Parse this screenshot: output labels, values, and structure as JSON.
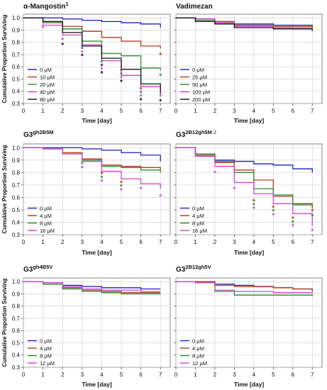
{
  "figure": {
    "colors": {
      "blue": "#1f1fbf",
      "red": "#b03a1e",
      "green": "#2e8b2e",
      "magenta": "#d040d0",
      "black": "#111111",
      "brown": "#b5561e",
      "grid": "#cccccc"
    }
  },
  "chart_data": [
    {
      "type": "line",
      "step": true,
      "title": "α-Mangostin",
      "title_sup": "1",
      "ylabel": "Cumulative Proportion Surviving",
      "xlabel": "Time [day]",
      "xlim": [
        0,
        7.5
      ],
      "ylim": [
        0.3,
        1.03
      ],
      "xticks": [
        0,
        1,
        2,
        3,
        4,
        5,
        6,
        7
      ],
      "yticks": [
        0.3,
        0.4,
        0.5,
        0.6,
        0.7,
        0.8,
        0.9,
        1.0
      ],
      "yticklabels": [
        "0.3",
        "0.4",
        "0.5",
        "0.6",
        "0.7",
        "0.8",
        "0.9",
        "1.0"
      ],
      "show_ylabel": true,
      "series": [
        {
          "name": "0 μM",
          "color": "#1f1fbf",
          "x": [
            0,
            2,
            3,
            4,
            5,
            6,
            7
          ],
          "y": [
            1.0,
            0.99,
            0.98,
            0.97,
            0.96,
            0.95,
            0.92
          ]
        },
        {
          "name": "10 μM",
          "color": "#b03a1e",
          "x": [
            0,
            1,
            2,
            3,
            4,
            5,
            6,
            7
          ],
          "y": [
            1.0,
            0.97,
            0.93,
            0.89,
            0.84,
            0.81,
            0.77,
            0.75
          ]
        },
        {
          "name": "20 μM",
          "color": "#2e8b2e",
          "x": [
            0,
            1,
            2,
            3,
            4,
            5,
            6,
            7
          ],
          "y": [
            1.0,
            0.96,
            0.91,
            0.81,
            0.71,
            0.69,
            0.59,
            0.57
          ]
        },
        {
          "name": "40 μM",
          "color": "#d040d0",
          "x": [
            0,
            1,
            2,
            3,
            4,
            5,
            6,
            7
          ],
          "y": [
            1.0,
            0.94,
            0.86,
            0.78,
            0.65,
            0.53,
            0.44,
            0.41
          ]
        },
        {
          "name": "80 μM",
          "color": "#111111",
          "x": [
            0,
            1,
            2,
            3,
            4,
            5,
            6,
            7
          ],
          "y": [
            1.0,
            0.97,
            0.88,
            0.77,
            0.67,
            0.58,
            0.46,
            0.38
          ]
        }
      ],
      "stars": [
        {
          "x": 1,
          "ys": [
            0.92
          ],
          "colors": [
            "#d040d0"
          ]
        },
        {
          "x": 2,
          "ys": [
            0.82,
            0.78
          ],
          "colors": [
            "#d040d0",
            "#111111"
          ]
        },
        {
          "x": 3,
          "ys": [
            0.75,
            0.72,
            0.69
          ],
          "colors": [
            "#2e8b2e",
            "#d040d0",
            "#111111"
          ]
        },
        {
          "x": 4,
          "ys": [
            0.64,
            0.61,
            0.58,
            0.55
          ],
          "colors": [
            "#2e8b2e",
            "#111111",
            "#d040d0",
            "#111111"
          ]
        },
        {
          "x": 5,
          "ys": [
            0.57,
            0.54,
            0.51,
            0.48
          ],
          "colors": [
            "#b03a1e",
            "#2e8b2e",
            "#d040d0",
            "#111111"
          ]
        },
        {
          "x": 6,
          "ys": [
            0.42,
            0.39,
            0.36,
            0.33
          ],
          "colors": [
            "#b03a1e",
            "#2e8b2e",
            "#d040d0",
            "#111111"
          ]
        },
        {
          "x": 7,
          "ys": [
            0.7,
            0.53,
            0.36,
            0.32
          ],
          "colors": [
            "#b03a1e",
            "#2e8b2e",
            "#d040d0",
            "#111111"
          ]
        }
      ]
    },
    {
      "type": "line",
      "step": true,
      "title": "Vadimezan",
      "title_sup": "",
      "ylabel": "",
      "xlabel": "Time [day]",
      "xlim": [
        0,
        7.5
      ],
      "ylim": [
        0.3,
        1.03
      ],
      "xticks": [
        0,
        1,
        2,
        3,
        4,
        5,
        6,
        7
      ],
      "yticks": [
        0.3,
        0.4,
        0.5,
        0.6,
        0.7,
        0.8,
        0.9,
        1.0
      ],
      "yticklabels": [],
      "show_ylabel": false,
      "series": [
        {
          "name": "0 μM",
          "color": "#1f1fbf",
          "x": [
            0,
            1,
            2,
            3,
            5,
            7
          ],
          "y": [
            1.0,
            0.99,
            0.97,
            0.95,
            0.94,
            0.93
          ]
        },
        {
          "name": "25 μM",
          "color": "#b03a1e",
          "x": [
            0,
            1,
            2,
            3,
            5,
            7
          ],
          "y": [
            1.0,
            0.99,
            0.97,
            0.94,
            0.93,
            0.92
          ]
        },
        {
          "name": "50 μM",
          "color": "#2e8b2e",
          "x": [
            0,
            1,
            2,
            3,
            4,
            5,
            6,
            7
          ],
          "y": [
            1.0,
            0.98,
            0.96,
            0.93,
            0.93,
            0.92,
            0.91,
            0.89
          ]
        },
        {
          "name": "100 μM",
          "color": "#d040d0",
          "x": [
            0,
            1,
            2,
            3,
            5,
            7
          ],
          "y": [
            1.0,
            0.99,
            0.96,
            0.93,
            0.92,
            0.91
          ]
        },
        {
          "name": "200 μM",
          "color": "#111111",
          "x": [
            0,
            1,
            2,
            3,
            4,
            5,
            6,
            7
          ],
          "y": [
            1.0,
            0.97,
            0.95,
            0.92,
            0.92,
            0.91,
            0.91,
            0.9
          ]
        }
      ],
      "stars": []
    },
    {
      "type": "line",
      "step": true,
      "title": "G3",
      "title_sup": "gh2B5M",
      "ylabel": "Cumulative Proportion Surviving",
      "xlabel": "Time [day]",
      "xlim": [
        0,
        7.5
      ],
      "ylim": [
        0.3,
        1.03
      ],
      "xticks": [
        0,
        1,
        2,
        3,
        4,
        5,
        6,
        7
      ],
      "yticks": [
        0.3,
        0.4,
        0.5,
        0.6,
        0.7,
        0.8,
        0.9,
        1.0
      ],
      "yticklabels": [
        "0.3",
        "0.4",
        "0.5",
        "0.6",
        "0.7",
        "0.8",
        "0.9",
        "1.0"
      ],
      "show_ylabel": true,
      "series": [
        {
          "name": "0 μM",
          "color": "#1f1fbf",
          "x": [
            0,
            2,
            3,
            4,
            5,
            6,
            7
          ],
          "y": [
            1.0,
            1.0,
            0.99,
            0.98,
            0.96,
            0.94,
            0.89
          ]
        },
        {
          "name": "4 μM",
          "color": "#b03a1e",
          "x": [
            0,
            1,
            2,
            3,
            4,
            5,
            6,
            7
          ],
          "y": [
            1.0,
            0.99,
            0.96,
            0.91,
            0.86,
            0.85,
            0.84,
            0.82
          ]
        },
        {
          "name": "8 μM",
          "color": "#2e8b2e",
          "x": [
            0,
            1,
            2,
            3,
            4,
            5,
            6,
            7
          ],
          "y": [
            1.0,
            0.99,
            0.95,
            0.9,
            0.85,
            0.84,
            0.82,
            0.8
          ]
        },
        {
          "name": "16 μM",
          "color": "#d040d0",
          "x": [
            0,
            1,
            2,
            3,
            4,
            5,
            6,
            7
          ],
          "y": [
            1.0,
            0.99,
            0.95,
            0.89,
            0.81,
            0.75,
            0.71,
            0.67
          ]
        }
      ],
      "stars": [
        {
          "x": 3,
          "ys": [
            0.87,
            0.84
          ],
          "colors": [
            "#2e8b2e",
            "#d040d0"
          ]
        },
        {
          "x": 4,
          "ys": [
            0.79,
            0.76,
            0.73
          ],
          "colors": [
            "#b03a1e",
            "#2e8b2e",
            "#d040d0"
          ]
        },
        {
          "x": 5,
          "ys": [
            0.72,
            0.69,
            0.66
          ],
          "colors": [
            "#b03a1e",
            "#2e8b2e",
            "#d040d0"
          ]
        },
        {
          "x": 6,
          "ys": [
            0.67
          ],
          "colors": [
            "#d040d0"
          ]
        },
        {
          "x": 7,
          "ys": [
            0.61
          ],
          "colors": [
            "#d040d0"
          ]
        }
      ]
    },
    {
      "type": "line",
      "step": true,
      "title": "G3",
      "title_sup": "2B12gh5M",
      "title_sup2": "2",
      "ylabel": "",
      "xlabel": "Time [day]",
      "xlim": [
        0,
        7.5
      ],
      "ylim": [
        0.3,
        1.03
      ],
      "xticks": [
        0,
        1,
        2,
        3,
        4,
        5,
        6,
        7
      ],
      "yticks": [
        0.3,
        0.4,
        0.5,
        0.6,
        0.7,
        0.8,
        0.9,
        1.0
      ],
      "yticklabels": [],
      "show_ylabel": false,
      "series": [
        {
          "name": "0 μM",
          "color": "#1f1fbf",
          "x": [
            0,
            1,
            2,
            3,
            4,
            5,
            6,
            7
          ],
          "y": [
            1.0,
            0.94,
            0.9,
            0.89,
            0.87,
            0.86,
            0.83,
            0.8
          ]
        },
        {
          "name": "4 μM",
          "color": "#b03a1e",
          "x": [
            0,
            1,
            2,
            3,
            4,
            5,
            6,
            7
          ],
          "y": [
            1.0,
            0.94,
            0.88,
            0.82,
            0.74,
            0.61,
            0.55,
            0.51
          ]
        },
        {
          "name": "8 μM",
          "color": "#2e8b2e",
          "x": [
            0,
            1,
            2,
            3,
            4,
            5,
            6,
            7
          ],
          "y": [
            1.0,
            0.95,
            0.89,
            0.8,
            0.67,
            0.62,
            0.54,
            0.52
          ]
        },
        {
          "name": "16 μM",
          "color": "#d040d0",
          "x": [
            0,
            1,
            2,
            3,
            4,
            5,
            6,
            7
          ],
          "y": [
            1.0,
            0.93,
            0.85,
            0.72,
            0.63,
            0.55,
            0.47,
            0.37
          ]
        }
      ],
      "stars": [
        {
          "x": 2,
          "ys": [
            0.8
          ],
          "colors": [
            "#d040d0"
          ]
        },
        {
          "x": 3,
          "ys": [
            0.67
          ],
          "colors": [
            "#d040d0"
          ]
        },
        {
          "x": 4,
          "ys": [
            0.57,
            0.54,
            0.51
          ],
          "colors": [
            "#b03a1e",
            "#2e8b2e",
            "#d040d0"
          ]
        },
        {
          "x": 5,
          "ys": [
            0.52,
            0.49,
            0.46
          ],
          "colors": [
            "#b03a1e",
            "#2e8b2e",
            "#d040d0"
          ]
        },
        {
          "x": 6,
          "ys": [
            0.43,
            0.4,
            0.37
          ],
          "colors": [
            "#b03a1e",
            "#2e8b2e",
            "#d040d0"
          ]
        },
        {
          "x": 7,
          "ys": [
            0.49,
            0.45,
            0.33
          ],
          "colors": [
            "#b03a1e",
            "#2e8b2e",
            "#d040d0"
          ]
        }
      ]
    },
    {
      "type": "line",
      "step": true,
      "title": "G3",
      "title_sup": "gh4B5V",
      "ylabel": "Cumulative Proportion Surviving",
      "xlabel": "Time [day]",
      "xlim": [
        0,
        7.5
      ],
      "ylim": [
        0.3,
        1.03
      ],
      "xticks": [
        0,
        1,
        2,
        3,
        4,
        5,
        6,
        7
      ],
      "yticks": [
        0.3,
        0.4,
        0.5,
        0.6,
        0.7,
        0.8,
        0.9,
        1.0
      ],
      "yticklabels": [
        "0.3",
        "0.4",
        "0.5",
        "0.6",
        "0.7",
        "0.8",
        "0.9",
        "1.0"
      ],
      "show_ylabel": true,
      "series": [
        {
          "name": "0 μM",
          "color": "#1f1fbf",
          "x": [
            0,
            1,
            2,
            3,
            4,
            5,
            6,
            7
          ],
          "y": [
            1.0,
            0.99,
            0.97,
            0.96,
            0.95,
            0.95,
            0.94,
            0.94
          ]
        },
        {
          "name": "4 μM",
          "color": "#b03a1e",
          "x": [
            0,
            1,
            2,
            3,
            4,
            5,
            6,
            7
          ],
          "y": [
            1.0,
            0.98,
            0.95,
            0.93,
            0.92,
            0.91,
            0.91,
            0.91
          ]
        },
        {
          "name": "8 μM",
          "color": "#2e8b2e",
          "x": [
            0,
            1,
            2,
            3,
            4,
            5,
            6,
            7
          ],
          "y": [
            1.0,
            0.98,
            0.94,
            0.92,
            0.91,
            0.9,
            0.9,
            0.9
          ]
        },
        {
          "name": "12 μM",
          "color": "#d040d0",
          "x": [
            0,
            1,
            2,
            3,
            4,
            5,
            6,
            7
          ],
          "y": [
            1.0,
            0.99,
            0.96,
            0.94,
            0.93,
            0.93,
            0.92,
            0.92
          ]
        }
      ],
      "stars": []
    },
    {
      "type": "line",
      "step": true,
      "title": "G3",
      "title_sup": "2B12gh5V",
      "ylabel": "",
      "xlabel": "Time [day]",
      "xlim": [
        0,
        7.5
      ],
      "ylim": [
        0.3,
        1.03
      ],
      "xticks": [
        0,
        1,
        2,
        3,
        4,
        5,
        6,
        7
      ],
      "yticks": [
        0.3,
        0.4,
        0.5,
        0.6,
        0.7,
        0.8,
        0.9,
        1.0
      ],
      "yticklabels": [],
      "show_ylabel": false,
      "series": [
        {
          "name": "0 μM",
          "color": "#1f1fbf",
          "x": [
            0,
            1,
            2,
            3,
            4,
            5,
            6,
            7
          ],
          "y": [
            1.0,
            1.0,
            0.98,
            0.97,
            0.96,
            0.95,
            0.94,
            0.92
          ]
        },
        {
          "name": "4 μM",
          "color": "#b03a1e",
          "x": [
            0,
            1,
            2,
            3,
            4,
            5,
            6,
            7
          ],
          "y": [
            1.0,
            1.0,
            0.97,
            0.96,
            0.96,
            0.95,
            0.94,
            0.93
          ]
        },
        {
          "name": "8 μM",
          "color": "#2e8b2e",
          "x": [
            0,
            1,
            2,
            3,
            4,
            5,
            6,
            7
          ],
          "y": [
            1.0,
            0.99,
            0.92,
            0.89,
            0.89,
            0.89,
            0.89,
            0.88
          ]
        },
        {
          "name": "12 μM",
          "color": "#d040d0",
          "x": [
            0,
            1,
            2,
            3,
            4,
            5,
            6,
            7
          ],
          "y": [
            1.0,
            0.99,
            0.93,
            0.92,
            0.92,
            0.91,
            0.91,
            0.9
          ]
        }
      ],
      "stars": []
    }
  ]
}
